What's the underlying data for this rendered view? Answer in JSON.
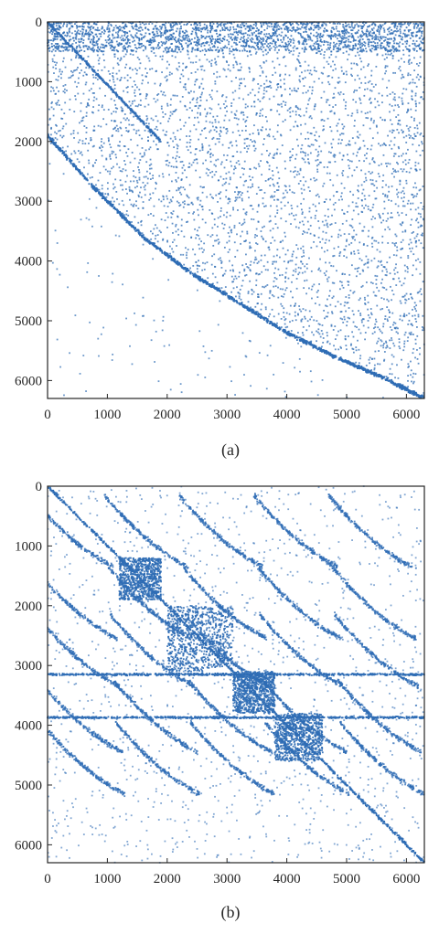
{
  "chart_data": [
    {
      "type": "scatter",
      "style": "sparsity-pattern",
      "caption": "(a)",
      "marker_color": "#2f6db5",
      "xlim": [
        0,
        6300
      ],
      "ylim": [
        0,
        6300
      ],
      "y_reversed": true,
      "grid": false,
      "xticks": [
        0,
        1000,
        2000,
        3000,
        4000,
        5000,
        6000
      ],
      "yticks": [
        0,
        1000,
        2000,
        3000,
        4000,
        5000,
        6000
      ],
      "xtick_labels": [
        "0",
        "1000",
        "2000",
        "3000",
        "4000",
        "5000",
        "6000"
      ],
      "ytick_labels": [
        "0",
        "1000",
        "2000",
        "3000",
        "4000",
        "5000",
        "6000"
      ],
      "structure": {
        "dense_top_band_rows": [
          0,
          500
        ],
        "short_diagonal": [
          [
            0,
            0
          ],
          [
            1900,
            2000
          ]
        ],
        "lower_boundary_curve": [
          [
            0,
            1900
          ],
          [
            800,
            2800
          ],
          [
            1600,
            3600
          ],
          [
            2400,
            4200
          ],
          [
            3200,
            4700
          ],
          [
            4000,
            5200
          ],
          [
            4800,
            5600
          ],
          [
            5600,
            5950
          ],
          [
            6300,
            6300
          ]
        ],
        "upper_region_density": "dense",
        "lower_region_density": "sparse"
      }
    },
    {
      "type": "scatter",
      "style": "sparsity-pattern",
      "caption": "(b)",
      "marker_color": "#2f6db5",
      "xlim": [
        0,
        6300
      ],
      "ylim": [
        0,
        6300
      ],
      "y_reversed": true,
      "grid": false,
      "xticks": [
        0,
        1000,
        2000,
        3000,
        4000,
        5000,
        6000
      ],
      "yticks": [
        0,
        1000,
        2000,
        3000,
        4000,
        5000,
        6000
      ],
      "xtick_labels": [
        "0",
        "1000",
        "2000",
        "3000",
        "4000",
        "5000",
        "6000"
      ],
      "ytick_labels": [
        "0",
        "1000",
        "2000",
        "3000",
        "4000",
        "5000",
        "6000"
      ],
      "structure": {
        "main_diagonal": [
          [
            0,
            0
          ],
          [
            6300,
            6300
          ]
        ],
        "dense_blocks": [
          [
            1200,
            1200,
            1900,
            1900
          ],
          [
            2000,
            2000,
            3100,
            3100
          ],
          [
            3100,
            3100,
            3800,
            3800
          ],
          [
            3800,
            3800,
            4600,
            4600
          ]
        ],
        "dense_rows": [
          3150,
          3870
        ],
        "curve_offsets": [
          0,
          1200,
          2000,
          3100,
          3800
        ]
      }
    }
  ]
}
